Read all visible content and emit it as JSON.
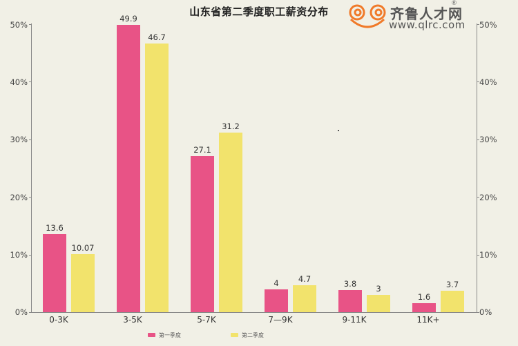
{
  "title": "山东省第二季度职工薪资分布",
  "logo": {
    "name": "齐鲁人才网",
    "registered": "®",
    "url": "www.qlrc.com",
    "color": "#f07a2a"
  },
  "y_ticks": [
    "0%",
    "10%",
    "20%",
    "30%",
    "40%",
    "50%"
  ],
  "legend": [
    {
      "label": "第一季度",
      "color": "#e85386"
    },
    {
      "label": "第二季度",
      "color": "#f2e36c"
    }
  ],
  "chart_data": {
    "type": "bar",
    "title": "山东省第二季度职工薪资分布",
    "xlabel": "",
    "ylabel": "",
    "ylim": [
      0,
      50
    ],
    "y_tick_labels": [
      "0%",
      "10%",
      "20%",
      "30%",
      "40%",
      "50%"
    ],
    "secondary_y_axis": true,
    "grid": false,
    "legend_position": "bottom",
    "categories": [
      "0-3K",
      "3-5K",
      "5-7K",
      "7—9K",
      "9-11K",
      "11K+"
    ],
    "series": [
      {
        "name": "第一季度",
        "color": "#e85386",
        "values": [
          13.6,
          49.9,
          27.1,
          4,
          3.8,
          1.6
        ],
        "labels": [
          "13.6",
          "49.9",
          "27.1",
          "4",
          "3.8",
          "1.6"
        ]
      },
      {
        "name": "第二季度",
        "color": "#f2e36c",
        "values": [
          10.07,
          46.7,
          31.2,
          4.7,
          3,
          3.7
        ],
        "labels": [
          "10.07",
          "46.7",
          "31.2",
          "4.7",
          "3",
          "3.7"
        ]
      }
    ]
  }
}
